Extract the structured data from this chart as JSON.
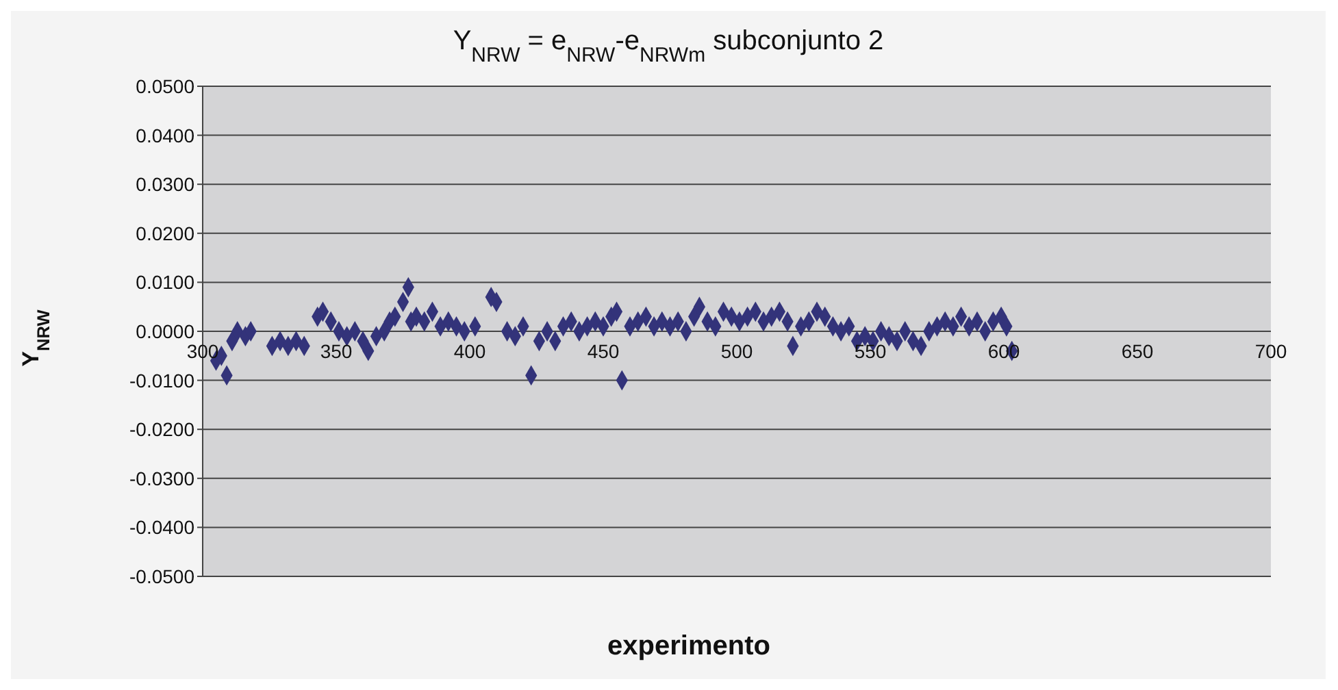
{
  "chart_data": {
    "type": "scatter",
    "title": "Y$_{NRW}$ = e$_{NRW}$-e$_{NRWm}$    subconjunto 2",
    "xlabel": "experimento",
    "ylabel": "Y$_{NRW}$",
    "xlim": [
      300,
      700
    ],
    "xticks": [
      300,
      350,
      400,
      450,
      500,
      550,
      600,
      650,
      700
    ],
    "ylim": [
      -0.05,
      0.05
    ],
    "yticks": [
      {
        "value": -0.05,
        "label": "-0.0500"
      },
      {
        "value": -0.04,
        "label": "-0.0400"
      },
      {
        "value": -0.03,
        "label": "-0.0300"
      },
      {
        "value": -0.02,
        "label": "-0.0200"
      },
      {
        "value": -0.01,
        "label": "-0.0100"
      },
      {
        "value": 0,
        "label": "0.0000"
      },
      {
        "value": 0.01,
        "label": "0.0100"
      },
      {
        "value": 0.02,
        "label": "0.0200"
      },
      {
        "value": 0.03,
        "label": "0.0300"
      },
      {
        "value": 0.04,
        "label": "0.0400"
      },
      {
        "value": 0.05,
        "label": "0.0500"
      }
    ],
    "grid": "y",
    "marker": "diamond",
    "legend": false,
    "series": [
      {
        "color": "#33337a",
        "x": [
          305,
          307,
          309,
          311,
          313,
          316,
          318,
          326,
          329,
          332,
          335,
          338,
          343,
          345,
          348,
          351,
          354,
          357,
          360,
          362,
          365,
          368,
          370,
          372,
          375,
          377,
          378,
          380,
          383,
          386,
          389,
          392,
          395,
          398,
          402,
          408,
          410,
          414,
          417,
          420,
          423,
          426,
          429,
          432,
          435,
          438,
          441,
          444,
          447,
          450,
          453,
          455,
          457,
          460,
          463,
          466,
          469,
          472,
          475,
          478,
          481,
          484,
          486,
          489,
          492,
          495,
          498,
          501,
          504,
          507,
          510,
          513,
          516,
          519,
          521,
          524,
          527,
          530,
          533,
          536,
          539,
          542,
          545,
          548,
          551,
          554,
          557,
          560,
          563,
          566,
          569,
          572,
          575,
          578,
          581,
          584,
          587,
          590,
          593,
          596,
          599,
          601,
          603
        ],
        "values": [
          -0.006,
          -0.005,
          -0.009,
          -0.002,
          0.0,
          -0.001,
          0.0,
          -0.003,
          -0.002,
          -0.003,
          -0.002,
          -0.003,
          0.003,
          0.004,
          0.002,
          0.0,
          -0.001,
          0.0,
          -0.002,
          -0.004,
          -0.001,
          0.0,
          0.002,
          0.003,
          0.006,
          0.009,
          0.002,
          0.003,
          0.002,
          0.004,
          0.001,
          0.002,
          0.001,
          0.0,
          0.001,
          0.007,
          0.006,
          0.0,
          -0.001,
          0.001,
          -0.009,
          -0.002,
          0.0,
          -0.002,
          0.001,
          0.002,
          0.0,
          0.001,
          0.002,
          0.001,
          0.003,
          0.004,
          -0.01,
          0.001,
          0.002,
          0.003,
          0.001,
          0.002,
          0.001,
          0.002,
          0.0,
          0.003,
          0.005,
          0.002,
          0.001,
          0.004,
          0.003,
          0.002,
          0.003,
          0.004,
          0.002,
          0.003,
          0.004,
          0.002,
          -0.003,
          0.001,
          0.002,
          0.004,
          0.003,
          0.001,
          0.0,
          0.001,
          -0.002,
          -0.001,
          -0.002,
          0.0,
          -0.001,
          -0.002,
          0.0,
          -0.002,
          -0.003,
          0.0,
          0.001,
          0.002,
          0.001,
          0.003,
          0.001,
          0.002,
          0.0,
          0.002,
          0.003,
          0.001,
          -0.004
        ]
      }
    ]
  }
}
